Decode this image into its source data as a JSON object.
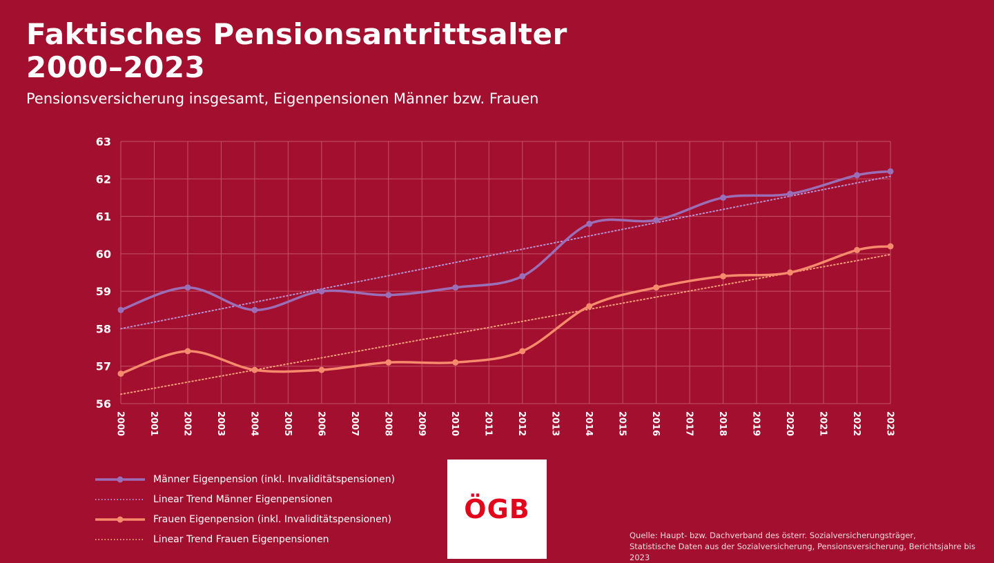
{
  "header": {
    "title_line1": "Faktisches Pensionsantrittsalter",
    "title_line2": "2000–2023",
    "subtitle": "Pensionsversicherung insgesamt, Eigenpensionen Männer bzw. Frauen"
  },
  "logo": {
    "text": "ÖGB"
  },
  "source": {
    "line1": "Quelle: Haupt- bzw. Dachverband des österr. Sozialversicherungsträger,",
    "line2": "Statistische Daten aus der Sozialversicherung, Pensionsversicherung, Berichtsjahre bis 2023"
  },
  "colors": {
    "background": "#a30f2e",
    "men": "#9b6fb8",
    "men_trend": "#b893d6",
    "women": "#f58b6c",
    "women_trend": "#f7a07a",
    "grid": "#c4536a"
  },
  "chart_data": {
    "type": "line",
    "title": "",
    "xlabel": "",
    "ylabel": "",
    "ylim": [
      56,
      63
    ],
    "yticks": [
      56,
      57,
      58,
      59,
      60,
      61,
      62,
      63
    ],
    "grid": true,
    "legend_position": "bottom-left",
    "x": [
      2000,
      2001,
      2002,
      2003,
      2004,
      2005,
      2006,
      2007,
      2008,
      2009,
      2010,
      2011,
      2012,
      2013,
      2014,
      2015,
      2016,
      2017,
      2018,
      2019,
      2020,
      2021,
      2022,
      2023
    ],
    "series": [
      {
        "name": "Männer Eigenpension (inkl. Invaliditätspensionen)",
        "style": "solid-markers",
        "x": [
          2000,
          2002,
          2004,
          2006,
          2008,
          2010,
          2012,
          2014,
          2016,
          2018,
          2020,
          2022,
          2023
        ],
        "values": [
          58.5,
          59.1,
          58.5,
          59.0,
          58.9,
          59.1,
          59.4,
          60.8,
          60.9,
          61.5,
          61.6,
          62.1,
          62.2
        ]
      },
      {
        "name": "Linear Trend Männer Eigenpensionen",
        "style": "dotted",
        "x": [
          2000,
          2023
        ],
        "values": [
          58.0,
          62.07
        ]
      },
      {
        "name": "Frauen Eigenpension (inkl. Invaliditätspensionen)",
        "style": "solid-markers",
        "x": [
          2000,
          2002,
          2004,
          2006,
          2008,
          2010,
          2012,
          2014,
          2016,
          2018,
          2020,
          2022,
          2023
        ],
        "values": [
          56.8,
          57.4,
          56.9,
          56.9,
          57.1,
          57.1,
          57.4,
          58.6,
          59.1,
          59.4,
          59.5,
          60.1,
          60.2
        ]
      },
      {
        "name": "Linear Trend Frauen Eigenpensionen",
        "style": "dotted",
        "x": [
          2000,
          2023
        ],
        "values": [
          56.25,
          59.98
        ]
      }
    ]
  }
}
